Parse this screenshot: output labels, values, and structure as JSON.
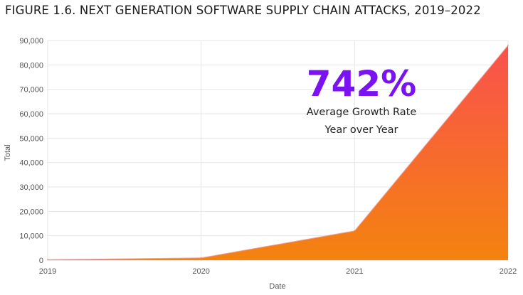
{
  "figure": {
    "title": "FIGURE 1.6. NEXT GENERATION SOFTWARE SUPPLY CHAIN ATTACKS, 2019–2022"
  },
  "callout": {
    "value": "742%",
    "line1": "Average Growth Rate",
    "line2": "Year over Year",
    "color": "#7a12f2"
  },
  "chart_data": {
    "type": "area",
    "title": "FIGURE 1.6. NEXT GENERATION SOFTWARE SUPPLY CHAIN ATTACKS, 2019–2022",
    "xlabel": "Date",
    "ylabel": "Total",
    "categories": [
      "2019",
      "2020",
      "2021",
      "2022"
    ],
    "series": [
      {
        "name": "Total",
        "values": [
          216,
          929,
          12000,
          88000
        ]
      }
    ],
    "ylim": [
      0,
      90000
    ],
    "yticks": [
      0,
      10000,
      20000,
      30000,
      40000,
      50000,
      60000,
      70000,
      80000,
      90000
    ],
    "ytick_labels": [
      "0",
      "10,000",
      "20,000",
      "30,000",
      "40,000",
      "50,000",
      "60,000",
      "70,000",
      "80,000",
      "90,000"
    ],
    "grid": true,
    "gradient": {
      "top": "#f9514d",
      "bottom": "#f4830f"
    }
  }
}
